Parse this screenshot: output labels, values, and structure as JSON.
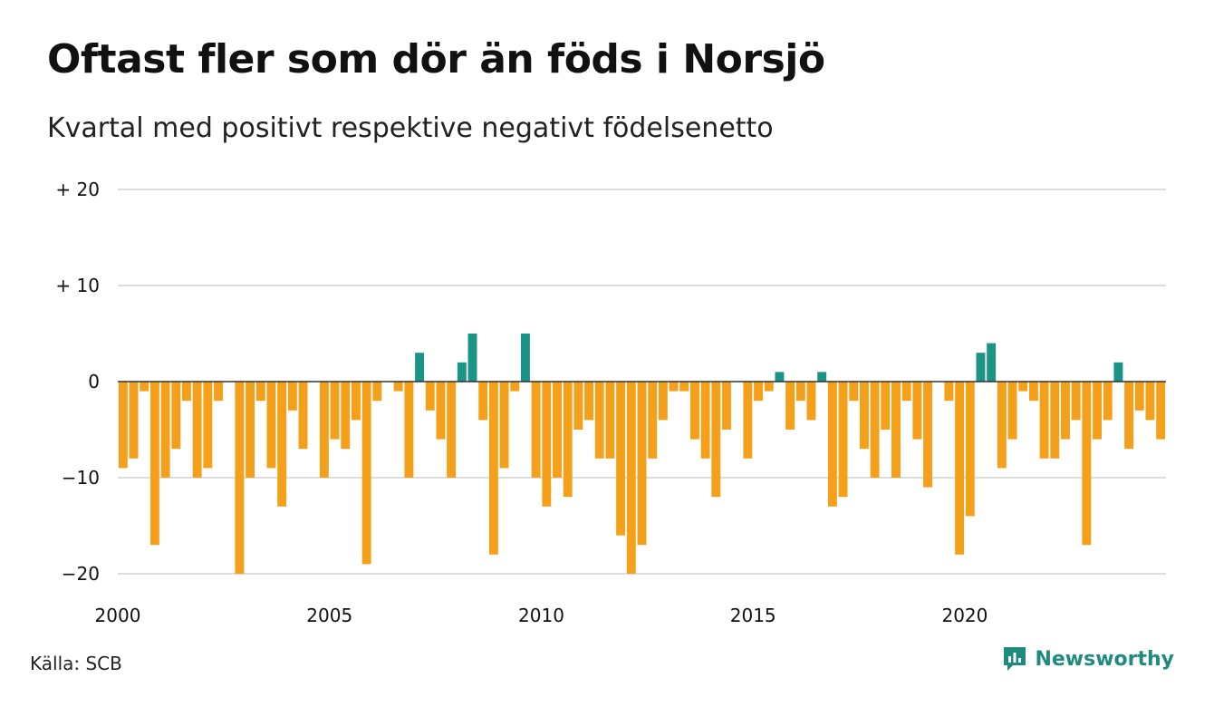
{
  "header": {
    "title": "Oftast fler som dör än föds i Norsjö",
    "subtitle": "Kvartal med positivt respektive negativt födelsenetto"
  },
  "footer": {
    "source": "Källa: SCB",
    "brand": "Newsworthy"
  },
  "colors": {
    "negative": "#f5a01a",
    "positive": "#1a9486",
    "grid": "#dddddd",
    "zero_line": "#333333",
    "brand": "#1f8a7e"
  },
  "chart_data": {
    "type": "bar",
    "x_start": 2000,
    "x_step": "quarter",
    "values": [
      -9,
      -8,
      -1,
      -17,
      -10,
      -7,
      -2,
      -10,
      -9,
      -2,
      0,
      -20,
      -10,
      -2,
      -9,
      -13,
      -3,
      -7,
      0,
      -10,
      -6,
      -7,
      -4,
      -19,
      -2,
      0,
      -1,
      -10,
      3,
      -3,
      -6,
      -10,
      2,
      5,
      -4,
      -18,
      -9,
      -1,
      5,
      -10,
      -13,
      -10,
      -12,
      -5,
      -4,
      -8,
      -8,
      -16,
      -20,
      -17,
      -8,
      -4,
      -1,
      -1,
      -6,
      -8,
      -12,
      -5,
      0,
      -8,
      -2,
      -1,
      1,
      -5,
      -2,
      -4,
      1,
      -13,
      -12,
      -2,
      -7,
      -10,
      -5,
      -10,
      -2,
      -6,
      -11,
      0,
      -2,
      -18,
      -14,
      3,
      4,
      -9,
      -6,
      -1,
      -2,
      -8,
      -8,
      -6,
      -4,
      -17,
      -6,
      -4,
      2,
      -7,
      -3,
      -4,
      -6
    ],
    "ylim": [
      -20,
      20
    ],
    "yticks": [
      {
        "value": 20,
        "label": "+ 20"
      },
      {
        "value": 10,
        "label": "+ 10"
      },
      {
        "value": 0,
        "label": "0"
      },
      {
        "value": -10,
        "label": "−10"
      },
      {
        "value": -20,
        "label": "−20"
      }
    ],
    "xticks": [
      {
        "value": 2000,
        "label": "2000"
      },
      {
        "value": 2005,
        "label": "2005"
      },
      {
        "value": 2010,
        "label": "2010"
      },
      {
        "value": 2015,
        "label": "2015"
      },
      {
        "value": 2020,
        "label": "2020"
      }
    ],
    "grid": true,
    "legend": "none"
  }
}
